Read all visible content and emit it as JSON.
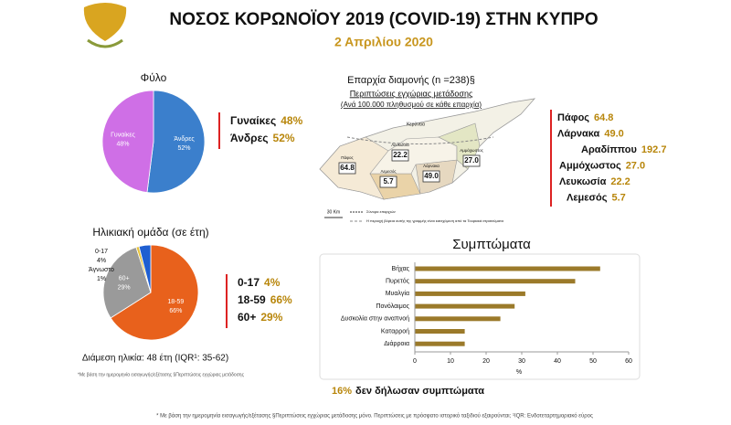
{
  "header": {
    "title": "ΝΟΣΟΣ ΚΟΡΩΝΟΪΟΥ 2019 (COVID-19) ΣΤΗΝ ΚΥΠΡΟ",
    "date": "2 Απριλίου 2020"
  },
  "chart_data": [
    {
      "type": "pie",
      "title": "Φύλο",
      "categories": [
        "Άνδρες",
        "Γυναίκες"
      ],
      "values": [
        52,
        48
      ],
      "value_labels": [
        "52%",
        "48%"
      ],
      "colors": [
        "#3b7fcc",
        "#cf6fe6"
      ]
    },
    {
      "type": "pie",
      "title": "Ηλικιακή ομάδα (σε έτη)",
      "categories": [
        "18-59",
        "60+",
        "Άγνωστο",
        "0-17"
      ],
      "values": [
        66,
        29,
        1,
        4
      ],
      "value_labels": [
        "66%",
        "29%",
        "1%",
        "4%"
      ],
      "colors": [
        "#e8611c",
        "#9a9a9a",
        "#e6c23a",
        "#1f5fd1"
      ],
      "note": "Διάμεση ηλικία: 48 έτη (IQR¹: 35-62)"
    },
    {
      "type": "hbar",
      "title": "Συμπτώματα",
      "categories": [
        "Βήχας",
        "Πυρετός",
        "Μυαλγία",
        "Πονόλαιμος",
        "Δυσκολία στην αναπνοή",
        "Καταρροή",
        "Διάρροια"
      ],
      "values": [
        52,
        45,
        31,
        28,
        24,
        14,
        14
      ],
      "color": "#9b7a2a",
      "xlim": [
        0,
        60
      ],
      "xticks": [
        0,
        10,
        20,
        30,
        40,
        50,
        60
      ],
      "xlabel": "%",
      "note_value": "16%",
      "note_text": "δεν δήλωσαν συμπτώματα"
    }
  ],
  "map": {
    "title": "Επαρχία διαμονής (n =238)§",
    "subtitle": "Περιπτώσεις εγχώριας μετάδοσης",
    "subtitle2": "(Ανά 100.000 πληθυσμού σε κάθε επαρχία)",
    "districts": [
      {
        "name": "Πάφος",
        "value": "64.8"
      },
      {
        "name": "Λάρνακα",
        "value": "49.0"
      },
      {
        "name": "Αραδίππου",
        "value": "192.7"
      },
      {
        "name": "Αμμόχωστος",
        "value": "27.0"
      },
      {
        "name": "Λευκωσία",
        "value": "22.2"
      },
      {
        "name": "Λεμεσός",
        "value": "5.7"
      }
    ],
    "scale": "30 Km",
    "legend_border": "Σύνορα επαρχιών",
    "legend_line": "Η περιοχή βόρεια αυτής της γραμμής είναι κατεχόμενη από τα Τουρκικά στρατεύματα",
    "place": "Κερύνεια"
  },
  "footnotes": {
    "small": "*Με βάση την ημερομηνία εισαγωγής/εξέτασης §Περιπτώσεις εγχώριας μετάδοσης",
    "bottom": "* Με βάση την ημερομηνία εισαγωγής/εξέτασης §Περιπτώσεις εγχώριας μετάδοσης μόνο. Περιπτώσεις με πρόσφατο ιστορικό ταξιδιού εξαιρούνται; ¹IQR: Ενδοτεταρτημοριακό εύρος"
  }
}
